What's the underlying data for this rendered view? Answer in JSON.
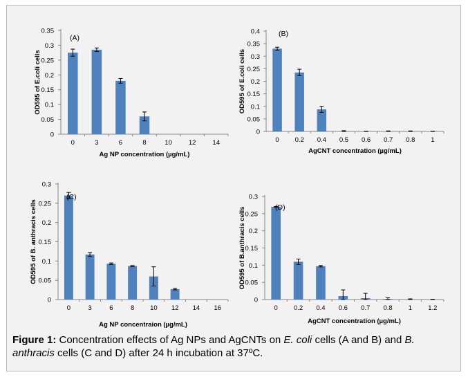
{
  "figure": {
    "caption_label": "Figure 1:",
    "caption_parts": [
      {
        "text": " Concentration effects of Ag NPs and AgCNTs on ",
        "style": "normal"
      },
      {
        "text": "E. coli",
        "style": "italic"
      },
      {
        "text": " cells (A and B) and ",
        "style": "normal"
      },
      {
        "text": "B. anthracis",
        "style": "italic"
      },
      {
        "text": " cells (C and D) after 24 h incubation at 37ºC.",
        "style": "normal"
      }
    ]
  },
  "colors": {
    "bar": "#4f81bd",
    "axis": "#868686",
    "frame_bg": "#f2f2f2",
    "frame_border": "#b8b8b8"
  },
  "chart_data": [
    {
      "type": "bar",
      "panel_label": "(A)",
      "categories": [
        "0",
        "3",
        "6",
        "8",
        "10",
        "12",
        "14"
      ],
      "values": [
        0.275,
        0.285,
        0.18,
        0.06,
        0,
        0,
        0
      ],
      "errors": [
        0.012,
        0.006,
        0.008,
        0.015,
        0,
        0,
        0
      ],
      "xlabel": "Ag NP concentration (µg/mL)",
      "ylabel": "OD595 of E.coli cells",
      "yticks": [
        "0",
        "0.05",
        "0.1",
        "0.15",
        "0.2",
        "0.25",
        "0.3",
        "0.35"
      ],
      "ylim": [
        0,
        0.35
      ]
    },
    {
      "type": "bar",
      "panel_label": "(B)",
      "categories": [
        "0",
        "0.2",
        "0.4",
        "0.5",
        "0.6",
        "0.7",
        "0.8",
        "1"
      ],
      "values": [
        0.33,
        0.235,
        0.088,
        0.001,
        0,
        0.001,
        0.001,
        0
      ],
      "errors": [
        0.006,
        0.013,
        0.012,
        0.002,
        0.001,
        0.001,
        0.001,
        0.001
      ],
      "xlabel": "AgCNT concentration (µg/mL)",
      "ylabel": "OD595 of E.coli cells",
      "yticks": [
        "0",
        "0.05",
        "0.1",
        "0.15",
        "0.2",
        "0.25",
        "0.3",
        "0.35",
        "0.4"
      ],
      "ylim": [
        0,
        0.4
      ]
    },
    {
      "type": "bar",
      "panel_label": "(C)",
      "categories": [
        "0",
        "3",
        "6",
        "8",
        "10",
        "12",
        "14",
        "16"
      ],
      "values": [
        0.27,
        0.117,
        0.093,
        0.087,
        0.06,
        0.027,
        0,
        0
      ],
      "errors": [
        0.008,
        0.005,
        0.002,
        0.001,
        0.025,
        0.002,
        0,
        0
      ],
      "xlabel": "Ag NP concentraion (µg/mL)",
      "ylabel": "OD595 of B. anthracis cells",
      "yticks": [
        "0",
        "0.05",
        "0.1",
        "0.15",
        "0.2",
        "0.25",
        "0.3"
      ],
      "ylim": [
        0,
        0.3
      ]
    },
    {
      "type": "bar",
      "panel_label": "(D)",
      "categories": [
        "0",
        "0.2",
        "0.4",
        "0.6",
        "0.7",
        "0.8",
        "1",
        "1.2"
      ],
      "values": [
        0.27,
        0.11,
        0.097,
        0.01,
        0.004,
        0.002,
        0.001,
        0
      ],
      "errors": [
        0.001,
        0.008,
        0.002,
        0.018,
        0.014,
        0.003,
        0.001,
        0.001
      ],
      "xlabel": "AgCNT concentration (µg/mL)",
      "ylabel": "OD595 of B.anthracis cells",
      "yticks": [
        "0",
        "0.05",
        "0.1",
        "0.15",
        "0.2",
        "0.25",
        "0.3"
      ],
      "ylim": [
        0,
        0.3
      ]
    }
  ]
}
